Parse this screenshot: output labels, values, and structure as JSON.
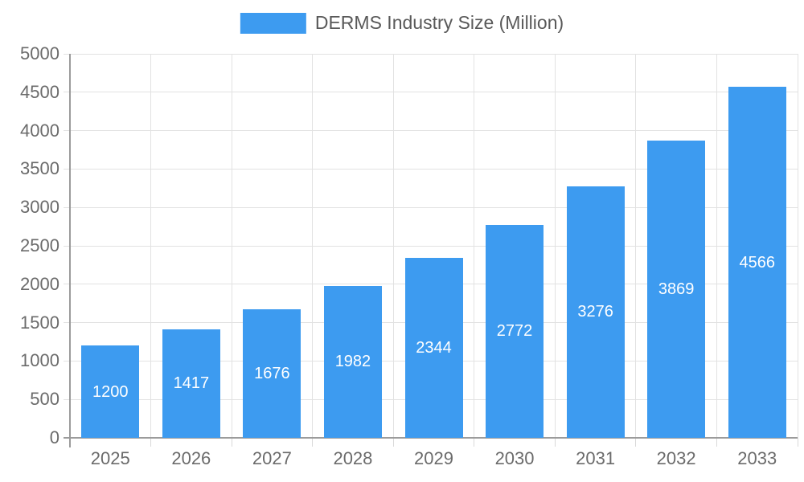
{
  "chart_data": {
    "type": "bar",
    "title": "DERMS Industry Size (Million)",
    "categories": [
      "2025",
      "2026",
      "2027",
      "2028",
      "2029",
      "2030",
      "2031",
      "2032",
      "2033"
    ],
    "values": [
      1200,
      1417,
      1676,
      1982,
      2344,
      2772,
      3276,
      3869,
      4566
    ],
    "xlabel": "",
    "ylabel": "",
    "ylim": [
      0,
      5000
    ],
    "ytick_step": 500,
    "yticks": [
      0,
      500,
      1000,
      1500,
      2000,
      2500,
      3000,
      3500,
      4000,
      4500,
      5000
    ],
    "grid": true,
    "legend_position": "top-center",
    "bar_labels_inside": true,
    "colors": {
      "bar": "#3D9BF0",
      "bar_label": "#FFFFFF",
      "axis_line": "#9B9B9B",
      "gridline": "#E2E2E2",
      "tick": "#D9D9D9",
      "axis_text": "#6B6B6B",
      "title_text": "#595959",
      "background": "#FFFFFF"
    }
  }
}
